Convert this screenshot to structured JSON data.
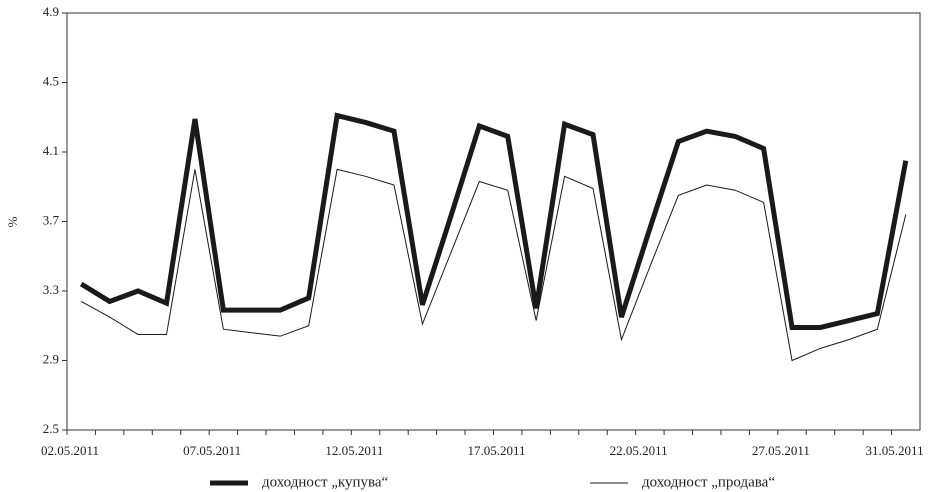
{
  "chart_data": {
    "type": "line",
    "ylabel": "%",
    "categories": [
      "02.05.2011",
      null,
      null,
      null,
      null,
      "07.05.2011",
      null,
      null,
      null,
      null,
      "12.05.2011",
      null,
      null,
      null,
      null,
      "17.05.2011",
      null,
      null,
      null,
      null,
      "22.05.2011",
      null,
      null,
      null,
      null,
      "27.05.2011",
      null,
      null,
      null,
      "31.05.2011"
    ],
    "series": [
      {
        "name": "доходност „купува“",
        "color": "#1a1a1a",
        "width": 5,
        "values": [
          3.34,
          3.24,
          3.3,
          3.23,
          4.29,
          3.19,
          3.19,
          3.19,
          3.26,
          4.31,
          4.27,
          4.22,
          3.22,
          3.73,
          4.25,
          4.19,
          3.2,
          4.26,
          4.2,
          3.15,
          3.66,
          4.16,
          4.22,
          4.19,
          4.12,
          3.09,
          3.09,
          3.13,
          3.17,
          4.05
        ]
      },
      {
        "name": "доходност „продава“",
        "color": "#1a1a1a",
        "width": 1,
        "values": [
          3.24,
          3.15,
          3.05,
          3.05,
          4.0,
          3.08,
          3.06,
          3.04,
          3.1,
          4.0,
          3.96,
          3.91,
          3.11,
          3.52,
          3.93,
          3.88,
          3.13,
          3.96,
          3.89,
          3.02,
          3.44,
          3.85,
          3.91,
          3.88,
          3.81,
          2.9,
          2.97,
          3.02,
          3.08,
          3.74
        ]
      }
    ],
    "ylim": [
      2.5,
      4.9
    ],
    "yticks": [
      2.5,
      2.9,
      3.3,
      3.7,
      4.1,
      4.5,
      4.9
    ],
    "grid": false,
    "legend": "bottom"
  }
}
